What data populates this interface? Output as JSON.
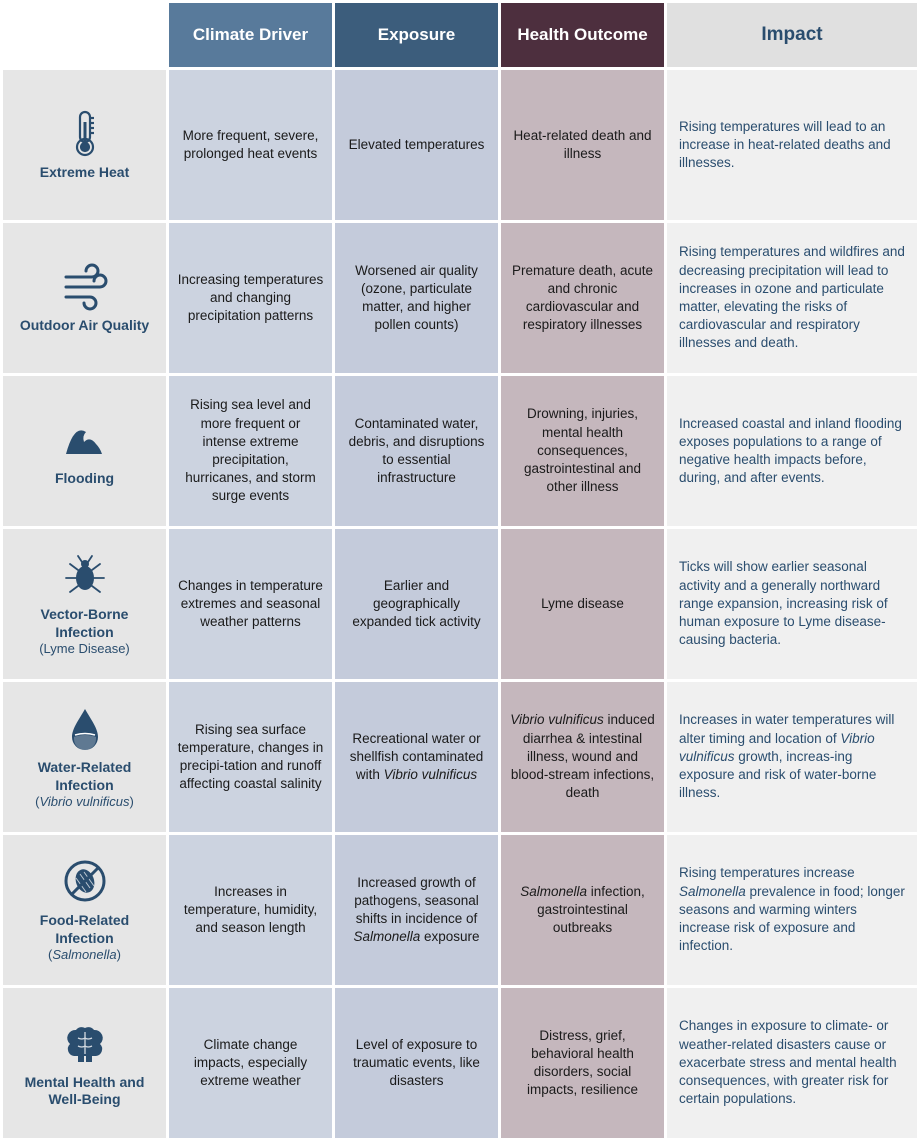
{
  "colors": {
    "label_bg": "#e6e6e6",
    "label_text": "#2a4d6e",
    "driver_header_bg": "#587a9b",
    "driver_header_text": "#ffffff",
    "exposure_header_bg": "#3c5d7c",
    "exposure_header_text": "#ffffff",
    "outcome_header_bg": "#4d2f3e",
    "outcome_header_text": "#ffffff",
    "impact_header_bg": "#e0e0e0",
    "impact_header_text": "#2a4d6e",
    "driver_cell_bg": "#ccd3e0",
    "exposure_cell_bg": "#c4cbdb",
    "outcome_cell_bg": "#c5b7bd",
    "impact_cell_bg": "#f0f0f0",
    "impact_text": "#2a4d6e",
    "icon_color": "#2a4d6e"
  },
  "col_widths": {
    "label": "150px",
    "driver": "150px",
    "exposure": "150px",
    "outcome": "150px",
    "impact": "230px"
  },
  "headers": {
    "driver": "Climate Driver",
    "exposure": "Exposure",
    "outcome": "Health Outcome",
    "impact": "Impact"
  },
  "rows": [
    {
      "icon": "thermometer",
      "label": "Extreme Heat",
      "sublabel": "",
      "driver": "More frequent, severe, prolonged heat events",
      "exposure": "Elevated temperatures",
      "outcome": "Heat-related death and illness",
      "impact": "Rising temperatures will lead to an increase in heat-related deaths and illnesses."
    },
    {
      "icon": "wind",
      "label": "Outdoor Air Quality",
      "sublabel": "",
      "driver": "Increasing temperatures and changing precipitation patterns",
      "exposure": "Worsened air quality (ozone, particulate matter, and higher pollen counts)",
      "outcome": "Premature death, acute and chronic cardiovascular and respiratory illnesses",
      "impact": "Rising temperatures and wildfires and decreasing precipitation will lead to increases in ozone and particulate matter, elevating the risks of cardiovascular and respiratory illnesses and death."
    },
    {
      "icon": "wave",
      "label": "Flooding",
      "sublabel": "",
      "driver": "Rising sea level and more frequent or intense extreme precipitation, hurricanes, and storm surge events",
      "exposure": "Contaminated water, debris, and disruptions to essential infrastructure",
      "outcome": "Drowning, injuries, mental health consequences, gastrointestinal and other illness",
      "impact": "Increased coastal and inland flooding exposes populations to a range of negative health impacts before, during, and after events."
    },
    {
      "icon": "tick",
      "label": "Vector-Borne Infection",
      "sublabel": "(Lyme Disease)",
      "driver": "Changes in temperature extremes and seasonal weather patterns",
      "exposure": "Earlier and geographically expanded tick activity",
      "outcome": "Lyme disease",
      "impact": "Ticks will show earlier seasonal activity and a generally northward range expansion, increasing risk of human exposure to Lyme disease-causing bacteria."
    },
    {
      "icon": "drop",
      "label": "Water-Related Infection",
      "sublabel": "(<em>Vibrio vulnificus</em>)",
      "driver": "Rising sea surface temperature, changes in precipi-tation and runoff affecting coastal salinity",
      "exposure": "Recreational water or shellfish contaminated with <em>Vibrio vulnificus</em>",
      "outcome": "<em>Vibrio vulnificus</em> induced diarrhea & intestinal illness, wound and blood-stream infections, death",
      "impact": "Increases in water temperatures will alter timing and location of <em>Vibrio vulnificus</em> growth, increas-ing exposure and risk of water-borne illness."
    },
    {
      "icon": "food",
      "label": "Food-Related Infection",
      "sublabel": "(<em>Salmonella</em>)",
      "driver": "Increases in temperature, humidity, and season length",
      "exposure": "Increased growth of pathogens, seasonal shifts in incidence of <em>Salmonella</em> exposure",
      "outcome": "<em>Salmonella</em> infection, gastrointestinal outbreaks",
      "impact": "Rising temperatures increase <em>Salmonella</em> prevalence in food; longer seasons and warming winters increase risk of exposure and infection."
    },
    {
      "icon": "brain",
      "label": "Mental Health and Well-Being",
      "sublabel": "",
      "driver": "Climate change impacts, especially extreme weather",
      "exposure": "Level of exposure to traumatic events, like disasters",
      "outcome": "Distress, grief, behavioral health disorders, social impacts, resilience",
      "impact": "Changes in exposure to climate- or weather-related disasters cause or exacerbate stress and mental health consequences, with greater risk for certain populations."
    }
  ]
}
